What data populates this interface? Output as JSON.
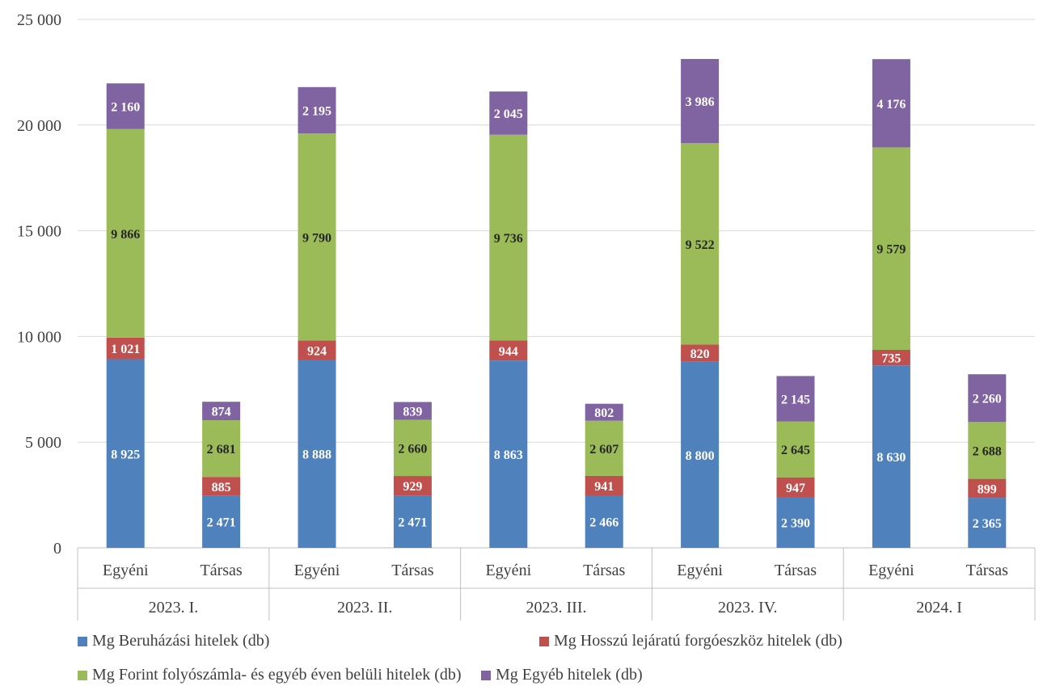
{
  "chart_data": {
    "type": "bar",
    "stacked": true,
    "groups": [
      "2023. I.",
      "2023. II.",
      "2023. III.",
      "2023. IV.",
      "2024. I"
    ],
    "subcategories": [
      "Egyéni",
      "Társas"
    ],
    "categories": [
      "2023. I. Egyéni",
      "2023. I. Társas",
      "2023. II. Egyéni",
      "2023. II. Társas",
      "2023. III. Egyéni",
      "2023. III. Társas",
      "2023. IV. Egyéni",
      "2023. IV. Társas",
      "2024. I Egyéni",
      "2024. I Társas"
    ],
    "series": [
      {
        "name": "Mg Beruházási hitelek (db)",
        "color": "#4f81bd",
        "label_color": "#ffffff",
        "values": [
          8925,
          2471,
          8888,
          2471,
          8863,
          2466,
          8800,
          2390,
          8630,
          2365
        ]
      },
      {
        "name": "Mg Hosszú lejáratú forgóeszköz hitelek (db)",
        "color": "#c0504d",
        "label_color": "#ffffff",
        "values": [
          1021,
          885,
          924,
          929,
          944,
          941,
          820,
          947,
          735,
          899
        ]
      },
      {
        "name": "Mg Forint folyószámla- és egyéb éven belüli hitelek (db)",
        "color": "#9bbb59",
        "label_color": "#262626",
        "values": [
          9866,
          2681,
          9790,
          2660,
          9736,
          2607,
          9522,
          2645,
          9579,
          2688
        ]
      },
      {
        "name": "Mg Egyéb hitelek (db)",
        "color": "#8064a2",
        "label_color": "#ffffff",
        "values": [
          2160,
          874,
          2195,
          839,
          2045,
          802,
          3986,
          2145,
          4176,
          2260
        ]
      }
    ],
    "ylim": [
      0,
      25000
    ],
    "yticks": [
      "0",
      "5 000",
      "10 000",
      "15 000",
      "20 000",
      "25 000"
    ],
    "ytick_values": [
      0,
      5000,
      10000,
      15000,
      20000,
      25000
    ],
    "title": "",
    "xlabel": "",
    "ylabel": "",
    "grid": true,
    "legend_position": "bottom"
  }
}
